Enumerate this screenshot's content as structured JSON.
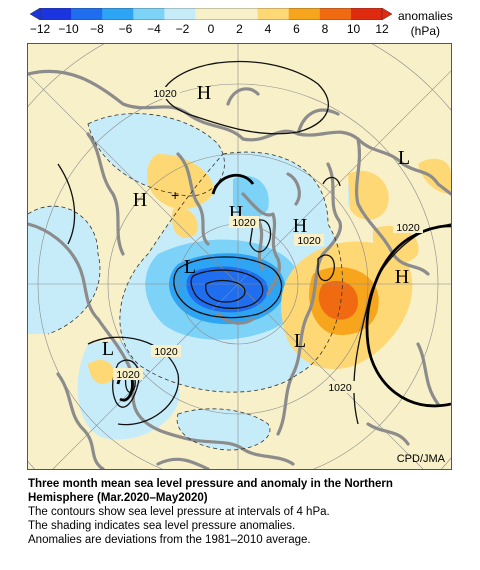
{
  "legend": {
    "unit_label": "anomalies",
    "unit": "(hPa)",
    "ticks": [
      "−12",
      "−10",
      "−8",
      "−6",
      "−4",
      "−2",
      "0",
      "2",
      "4",
      "6",
      "8",
      "10",
      "12"
    ],
    "colors": [
      "#1a35e0",
      "#1f6ef0",
      "#2ea4f5",
      "#7dd2f7",
      "#c7ecf9",
      "#f8f0c8",
      "#f8f0c8",
      "#fdd874",
      "#f7a51c",
      "#f06a12",
      "#e02a10"
    ]
  },
  "map": {
    "pressure_labels": [
      "1020",
      "1020",
      "1020",
      "1020",
      "1020",
      "1020"
    ],
    "high_labels": [
      "H",
      "H",
      "H",
      "H",
      "H"
    ],
    "low_labels": [
      "L",
      "L",
      "L",
      "L"
    ],
    "credit": "CPD/JMA"
  },
  "caption": {
    "title_line1": "Three month mean sea level pressure and anomaly in the Northern",
    "title_line2": "Hemisphere (Mar.2020–May2020)",
    "line1": "The contours show sea level pressure at intervals of 4 hPa.",
    "line2": "The shading indicates sea level pressure anomalies.",
    "line3": "Anomalies are deviations from the 1981–2010 average."
  }
}
